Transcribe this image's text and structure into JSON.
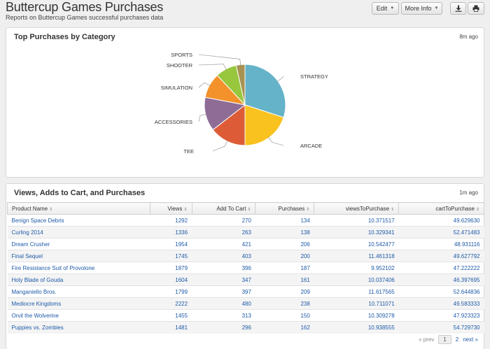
{
  "header": {
    "title": "Buttercup Games Purchases",
    "subtitle": "Reports on Buttercup Games successful purchases data",
    "edit_label": "Edit",
    "more_label": "More Info",
    "export_icon": "download-icon",
    "print_icon": "print-icon"
  },
  "pie_panel": {
    "title": "Top Purchases by Category",
    "time": "8m ago"
  },
  "chart_data": {
    "type": "pie",
    "title": "",
    "slices": [
      {
        "label": "STRATEGY",
        "value": 30.0,
        "color": "#65b3c9"
      },
      {
        "label": "ARCADE",
        "value": 20.0,
        "color": "#f9c21f"
      },
      {
        "label": "TEE",
        "value": 14.5,
        "color": "#dd5c37"
      },
      {
        "label": "ACCESSORIES",
        "value": 13.5,
        "color": "#8e6c96"
      },
      {
        "label": "SIMULATION",
        "value": 10.0,
        "color": "#f3922a"
      },
      {
        "label": "SHOOTER",
        "value": 8.5,
        "color": "#98c73e"
      },
      {
        "label": "SPORTS",
        "value": 3.5,
        "color": "#a79351"
      }
    ]
  },
  "table_panel": {
    "title": "Views, Adds to Cart, and Purchases",
    "time": "1m ago",
    "columns": [
      "Product Name",
      "Views",
      "Add To Cart",
      "Purchases",
      "viewsToPurchase",
      "cartToPurchase"
    ],
    "rows": [
      [
        "Benign Space Debris",
        "1292",
        "270",
        "134",
        "10.371517",
        "49.629630"
      ],
      [
        "Curling 2014",
        "1336",
        "263",
        "138",
        "10.329341",
        "52.471483"
      ],
      [
        "Dream Crusher",
        "1954",
        "421",
        "206",
        "10.542477",
        "48.931116"
      ],
      [
        "Final Sequel",
        "1745",
        "403",
        "200",
        "11.461318",
        "49.627792"
      ],
      [
        "Fire Resistance Suit of Provolone",
        "1879",
        "396",
        "187",
        "9.952102",
        "47.222222"
      ],
      [
        "Holy Blade of Gouda",
        "1604",
        "347",
        "161",
        "10.037406",
        "46.397695"
      ],
      [
        "Manganiello Bros.",
        "1799",
        "397",
        "209",
        "11.617565",
        "52.644836"
      ],
      [
        "Mediocre Kingdoms",
        "2222",
        "480",
        "238",
        "10.711071",
        "49.583333"
      ],
      [
        "Orvil the Wolverine",
        "1455",
        "313",
        "150",
        "10.309278",
        "47.923323"
      ],
      [
        "Puppies vs. Zombies",
        "1481",
        "296",
        "162",
        "10.938555",
        "54.729730"
      ]
    ],
    "pager": {
      "prev": "« prev",
      "current": "1",
      "next_page": "2",
      "next": "next »"
    }
  }
}
